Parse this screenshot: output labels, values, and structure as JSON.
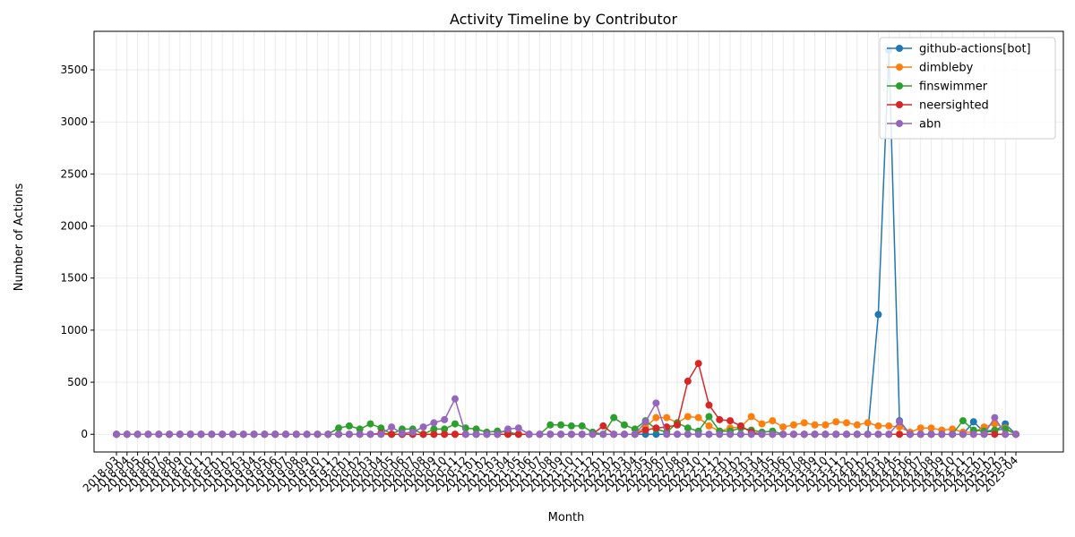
{
  "chart_data": {
    "type": "line",
    "title": "Activity Timeline by Contributor",
    "xlabel": "Month",
    "ylabel": "Number of Actions",
    "ylim": [
      -170,
      3870
    ],
    "yticks": [
      0,
      500,
      1000,
      1500,
      2000,
      2500,
      3000,
      3500
    ],
    "grid": true,
    "legend_position": "top-right",
    "categories": [
      "2018-03",
      "2018-04",
      "2018-05",
      "2018-06",
      "2018-07",
      "2018-08",
      "2018-09",
      "2018-10",
      "2018-11",
      "2018-12",
      "2019-01",
      "2019-02",
      "2019-03",
      "2019-04",
      "2019-05",
      "2019-06",
      "2019-07",
      "2019-08",
      "2019-09",
      "2019-10",
      "2019-11",
      "2019-12",
      "2020-01",
      "2020-02",
      "2020-03",
      "2020-04",
      "2020-05",
      "2020-06",
      "2020-07",
      "2020-08",
      "2020-09",
      "2020-10",
      "2020-11",
      "2020-12",
      "2021-01",
      "2021-02",
      "2021-03",
      "2021-04",
      "2021-05",
      "2021-06",
      "2021-07",
      "2021-08",
      "2021-09",
      "2021-10",
      "2021-11",
      "2021-12",
      "2022-01",
      "2022-02",
      "2022-03",
      "2022-04",
      "2022-05",
      "2022-06",
      "2022-07",
      "2022-08",
      "2022-09",
      "2022-10",
      "2022-11",
      "2022-12",
      "2023-01",
      "2023-02",
      "2023-03",
      "2023-04",
      "2023-05",
      "2023-06",
      "2023-07",
      "2023-08",
      "2023-09",
      "2023-10",
      "2023-11",
      "2023-12",
      "2024-01",
      "2024-02",
      "2024-03",
      "2024-04",
      "2024-05",
      "2024-06",
      "2024-07",
      "2024-08",
      "2024-09",
      "2024-10",
      "2024-11",
      "2024-12",
      "2025-01",
      "2025-02",
      "2025-03",
      "2025-04"
    ],
    "tick_labels": [
      "2018-03",
      "2018-04",
      "2018-05",
      "2018-06",
      "2018-07",
      "2018-08",
      "2018-09",
      "2018-10",
      "2018-11",
      "2018-12",
      "2019-01",
      "2019-02",
      "2019-03",
      "2019-04",
      "2019-05",
      "2019-06",
      "2019-07",
      "2019-08",
      "2019-09",
      "2019-10",
      "2019-11",
      "2019-12",
      "2020-01",
      "2020-02",
      "2020-03",
      "2020-04",
      "2020-05",
      "2020-06",
      "2020-07",
      "2020-08",
      "2020-09",
      "2020-10",
      "2020-11",
      "2020-12",
      "2021-01",
      "2021-02",
      "2021-03",
      "2021-04",
      "2021-05",
      "2021-06",
      "2021-07",
      "2021-08",
      "2021-09",
      "2021-10",
      "2021-11",
      "2021-12",
      "2022-01",
      "2022-02",
      "2022-03",
      "2022-04",
      "2022-05",
      "2022-06",
      "2022-07",
      "2022-08",
      "2022-09",
      "2022-10",
      "2022-11",
      "2022-12",
      "2023-01",
      "2023-02",
      "2023-03",
      "2023-04",
      "2023-05",
      "2023-06",
      "2023-07",
      "2023-08",
      "2023-09",
      "2023-10",
      "2023-11",
      "2023-12",
      "2024-01",
      "2024-02",
      "2024-03",
      "2024-04",
      "2024-05",
      "2024-06",
      "2024-07",
      "2024-08",
      "2024-09",
      "2024-10",
      "2024-11",
      "2024-12",
      "2025-01",
      "2025-02",
      "2025-03",
      "2025-04"
    ],
    "series": [
      {
        "name": "github-actions[bot]",
        "color": "#1f77b4",
        "values": [
          0,
          0,
          0,
          0,
          0,
          0,
          0,
          0,
          0,
          0,
          0,
          0,
          0,
          0,
          0,
          0,
          0,
          0,
          0,
          0,
          0,
          0,
          0,
          0,
          0,
          0,
          0,
          0,
          0,
          0,
          0,
          0,
          0,
          0,
          0,
          0,
          0,
          0,
          0,
          0,
          0,
          0,
          0,
          0,
          0,
          0,
          0,
          0,
          0,
          0,
          0,
          0,
          0,
          0,
          0,
          0,
          0,
          0,
          0,
          0,
          0,
          0,
          0,
          0,
          0,
          0,
          0,
          0,
          0,
          0,
          0,
          0,
          1150,
          3690,
          130,
          0,
          0,
          0,
          0,
          0,
          0,
          120,
          20,
          30,
          100,
          0
        ]
      },
      {
        "name": "dimbleby",
        "color": "#ff7f0e",
        "values": [
          0,
          0,
          0,
          0,
          0,
          0,
          0,
          0,
          0,
          0,
          0,
          0,
          0,
          0,
          0,
          0,
          0,
          0,
          0,
          0,
          0,
          0,
          0,
          0,
          0,
          0,
          0,
          0,
          0,
          0,
          0,
          0,
          0,
          0,
          0,
          0,
          0,
          0,
          0,
          0,
          0,
          0,
          0,
          0,
          0,
          0,
          0,
          0,
          0,
          0,
          70,
          160,
          160,
          110,
          170,
          160,
          80,
          30,
          60,
          70,
          170,
          100,
          130,
          70,
          90,
          110,
          90,
          90,
          120,
          110,
          90,
          110,
          80,
          80,
          70,
          20,
          60,
          60,
          40,
          50,
          20,
          20,
          70,
          100,
          60,
          0
        ]
      },
      {
        "name": "finswimmer",
        "color": "#2ca02c",
        "values": [
          0,
          0,
          0,
          0,
          0,
          0,
          0,
          0,
          0,
          0,
          0,
          0,
          0,
          0,
          0,
          0,
          0,
          0,
          0,
          0,
          0,
          60,
          80,
          50,
          100,
          60,
          0,
          50,
          50,
          0,
          50,
          50,
          100,
          60,
          50,
          20,
          30,
          20,
          0,
          0,
          0,
          90,
          90,
          80,
          80,
          20,
          0,
          160,
          90,
          50,
          130,
          50,
          20,
          110,
          60,
          30,
          170,
          30,
          30,
          60,
          40,
          20,
          30,
          0,
          0,
          0,
          0,
          0,
          0,
          0,
          0,
          0,
          0,
          0,
          0,
          0,
          0,
          0,
          0,
          0,
          130,
          40,
          30,
          40,
          50,
          0
        ]
      },
      {
        "name": "neersighted",
        "color": "#d62728",
        "values": [
          0,
          0,
          0,
          0,
          0,
          0,
          0,
          0,
          0,
          0,
          0,
          0,
          0,
          0,
          0,
          0,
          0,
          0,
          0,
          0,
          0,
          0,
          0,
          0,
          0,
          0,
          0,
          0,
          0,
          0,
          0,
          0,
          0,
          0,
          0,
          0,
          0,
          0,
          0,
          0,
          0,
          0,
          0,
          0,
          0,
          0,
          0,
          0,
          0,
          0,
          0,
          0,
          0,
          0,
          0,
          0,
          0,
          0,
          0,
          0,
          0,
          0,
          0,
          0,
          0,
          0,
          0,
          0,
          0,
          0,
          0,
          0,
          0,
          0,
          0,
          0,
          0,
          0,
          0,
          0,
          0,
          0,
          0,
          0,
          0,
          0
        ]
      },
      {
        "name": "abn",
        "color": "#9467bd",
        "values": [
          0,
          0,
          0,
          0,
          0,
          0,
          0,
          0,
          0,
          0,
          0,
          0,
          0,
          0,
          0,
          0,
          0,
          0,
          0,
          0,
          0,
          0,
          0,
          0,
          0,
          0,
          70,
          10,
          20,
          70,
          110,
          140,
          340,
          0,
          0,
          0,
          0,
          50,
          60,
          0,
          0,
          0,
          0,
          0,
          0,
          0,
          0,
          0,
          0,
          0,
          120,
          300,
          0,
          0,
          0,
          0,
          0,
          0,
          0,
          0,
          0,
          0,
          0,
          0,
          0,
          0,
          0,
          0,
          0,
          0,
          0,
          0,
          0,
          0,
          120,
          0,
          0,
          0,
          0,
          0,
          0,
          0,
          0,
          160,
          0,
          0
        ]
      }
    ],
    "series_overrides": {
      "neersighted": {
        "values": [
          0,
          0,
          0,
          0,
          0,
          0,
          0,
          0,
          0,
          0,
          0,
          0,
          0,
          0,
          0,
          0,
          0,
          0,
          0,
          0,
          0,
          0,
          0,
          0,
          0,
          10,
          0,
          0,
          0,
          0,
          0,
          0,
          0,
          0,
          0,
          0,
          0,
          0,
          0,
          0,
          0,
          0,
          0,
          0,
          0,
          0,
          80,
          0,
          0,
          0,
          40,
          60,
          70,
          90,
          510,
          680,
          280,
          140,
          130,
          80,
          20,
          0,
          0,
          0,
          0,
          0,
          0,
          0,
          0,
          0,
          0,
          0,
          0,
          0,
          0,
          0,
          0,
          0,
          0,
          0,
          0,
          0,
          0,
          0,
          0,
          0
        ]
      }
    }
  }
}
